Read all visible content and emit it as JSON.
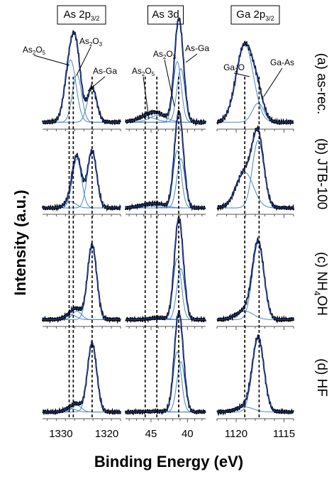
{
  "chart_data": {
    "type": "line",
    "ylabel": "Intensity (a.u.)",
    "xlabel": "Binding Energy (eV)",
    "columns": [
      {
        "title_main": "As 2p",
        "title_sub": "3/2",
        "xlim": [
          1334,
          1317
        ],
        "ticks": [
          1330,
          1320
        ],
        "tick_labels": [
          "1330",
          "1320"
        ],
        "ref_lines": [
          1328.2,
          1327.3,
          1323.2
        ],
        "annotations": [
          {
            "main": "As",
            "sub": "2",
            "rest": "O",
            "sub2": "5"
          },
          {
            "main": "As",
            "sub": "2",
            "rest": "O",
            "sub2": "3"
          },
          {
            "main": "As-Ga",
            "sub": "",
            "rest": "",
            "sub2": ""
          }
        ],
        "components": [
          {
            "center": 1327.9,
            "width": 1.2
          },
          {
            "center": 1326.5,
            "width": 1.0
          },
          {
            "center": 1323.2,
            "width": 1.0
          }
        ]
      },
      {
        "title_main": "As 3d",
        "title_sub": "",
        "xlim": [
          48.5,
          37.5
        ],
        "ticks": [
          45,
          40
        ],
        "tick_labels": [
          "45",
          "40"
        ],
        "ref_lines": [
          45.8,
          44.2,
          41.2
        ],
        "annotations": [
          {
            "main": "As",
            "sub": "2",
            "rest": "O",
            "sub2": "5"
          },
          {
            "main": "As",
            "sub": "2",
            "rest": "O",
            "sub2": "3"
          },
          {
            "main": "As-Ga",
            "sub": "",
            "rest": "",
            "sub2": ""
          }
        ],
        "components": [
          {
            "center": 45.6,
            "width": 1.3
          },
          {
            "center": 44.0,
            "width": 1.2
          },
          {
            "center": 41.4,
            "width": 0.55
          },
          {
            "center": 40.9,
            "width": 0.55
          }
        ]
      },
      {
        "title_main": "Ga 2p",
        "title_sub": "3/2",
        "xlim": [
          1122,
          1114
        ],
        "ticks": [
          1120,
          1115
        ],
        "tick_labels": [
          "1120",
          "1115"
        ],
        "ref_lines": [
          1119.1,
          1117.6
        ],
        "annotations": [
          {
            "main": "Ga",
            "sub": "2",
            "rest": "O",
            "sub2": ""
          },
          {
            "main": "Ga-As",
            "sub": "",
            "rest": "",
            "sub2": ""
          }
        ],
        "components": [
          {
            "center": 1119.1,
            "width": 0.9
          },
          {
            "center": 1117.7,
            "width": 0.6
          }
        ]
      }
    ],
    "rows": [
      {
        "label": "(a) as-rec.",
        "label_sub": "",
        "label_after": "",
        "amps": [
          [
            0.72,
            0.55,
            0.4
          ],
          [
            0.06,
            0.08,
            0.7,
            0.62
          ],
          [
            0.9,
            0.22
          ]
        ]
      },
      {
        "label": "(b) JTB-100",
        "label_sub": "",
        "label_after": "",
        "amps": [
          [
            0.08,
            0.62,
            0.72
          ],
          [
            0.03,
            0.04,
            0.72,
            0.62
          ],
          [
            0.45,
            0.85
          ]
        ]
      },
      {
        "label": "(c) NH",
        "label_sub": "4",
        "label_after": "OH",
        "amps": [
          [
            0.06,
            0.1,
            0.88
          ],
          [
            0.0,
            0.02,
            0.72,
            0.6
          ],
          [
            0.1,
            0.9
          ]
        ]
      },
      {
        "label": "(d) HF",
        "label_sub": "",
        "label_after": "",
        "amps": [
          [
            0.04,
            0.08,
            0.82
          ],
          [
            0.0,
            0.01,
            0.72,
            0.6
          ],
          [
            0.06,
            0.88
          ]
        ]
      }
    ]
  }
}
